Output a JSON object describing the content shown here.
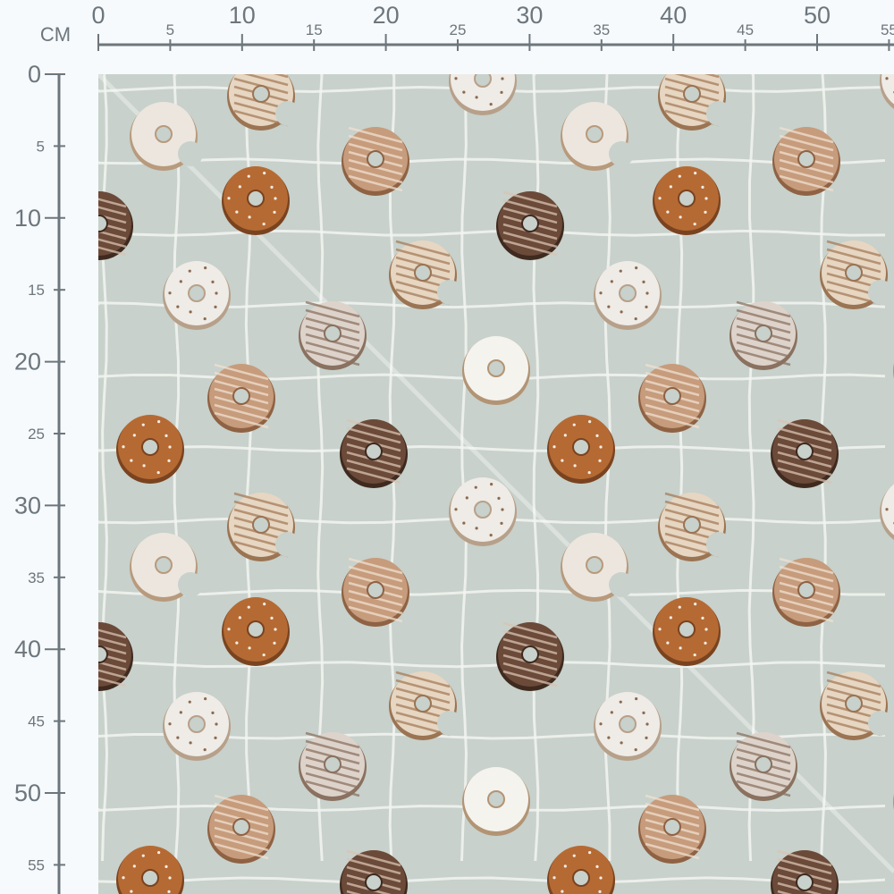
{
  "ruler": {
    "unit": "CM",
    "top_major": [
      "0",
      "10",
      "20",
      "30",
      "40",
      "50"
    ],
    "top_minor": [
      "5",
      "15",
      "25",
      "35",
      "45",
      "55"
    ],
    "left_major": [
      "0",
      "10",
      "20",
      "30",
      "40",
      "50"
    ],
    "left_minor": [
      "5",
      "15",
      "25",
      "35",
      "45",
      "55"
    ],
    "color": "#6d767d"
  },
  "fabric": {
    "background": "#c8d1cb",
    "grid_color": "#f2f5f1",
    "donut_types": [
      "white-bitten",
      "striped-bitten",
      "white-sprinkled",
      "light-brown-striped",
      "caramel-sprinkled",
      "dark-chocolate",
      "white-ridged",
      "white-glazed"
    ]
  }
}
